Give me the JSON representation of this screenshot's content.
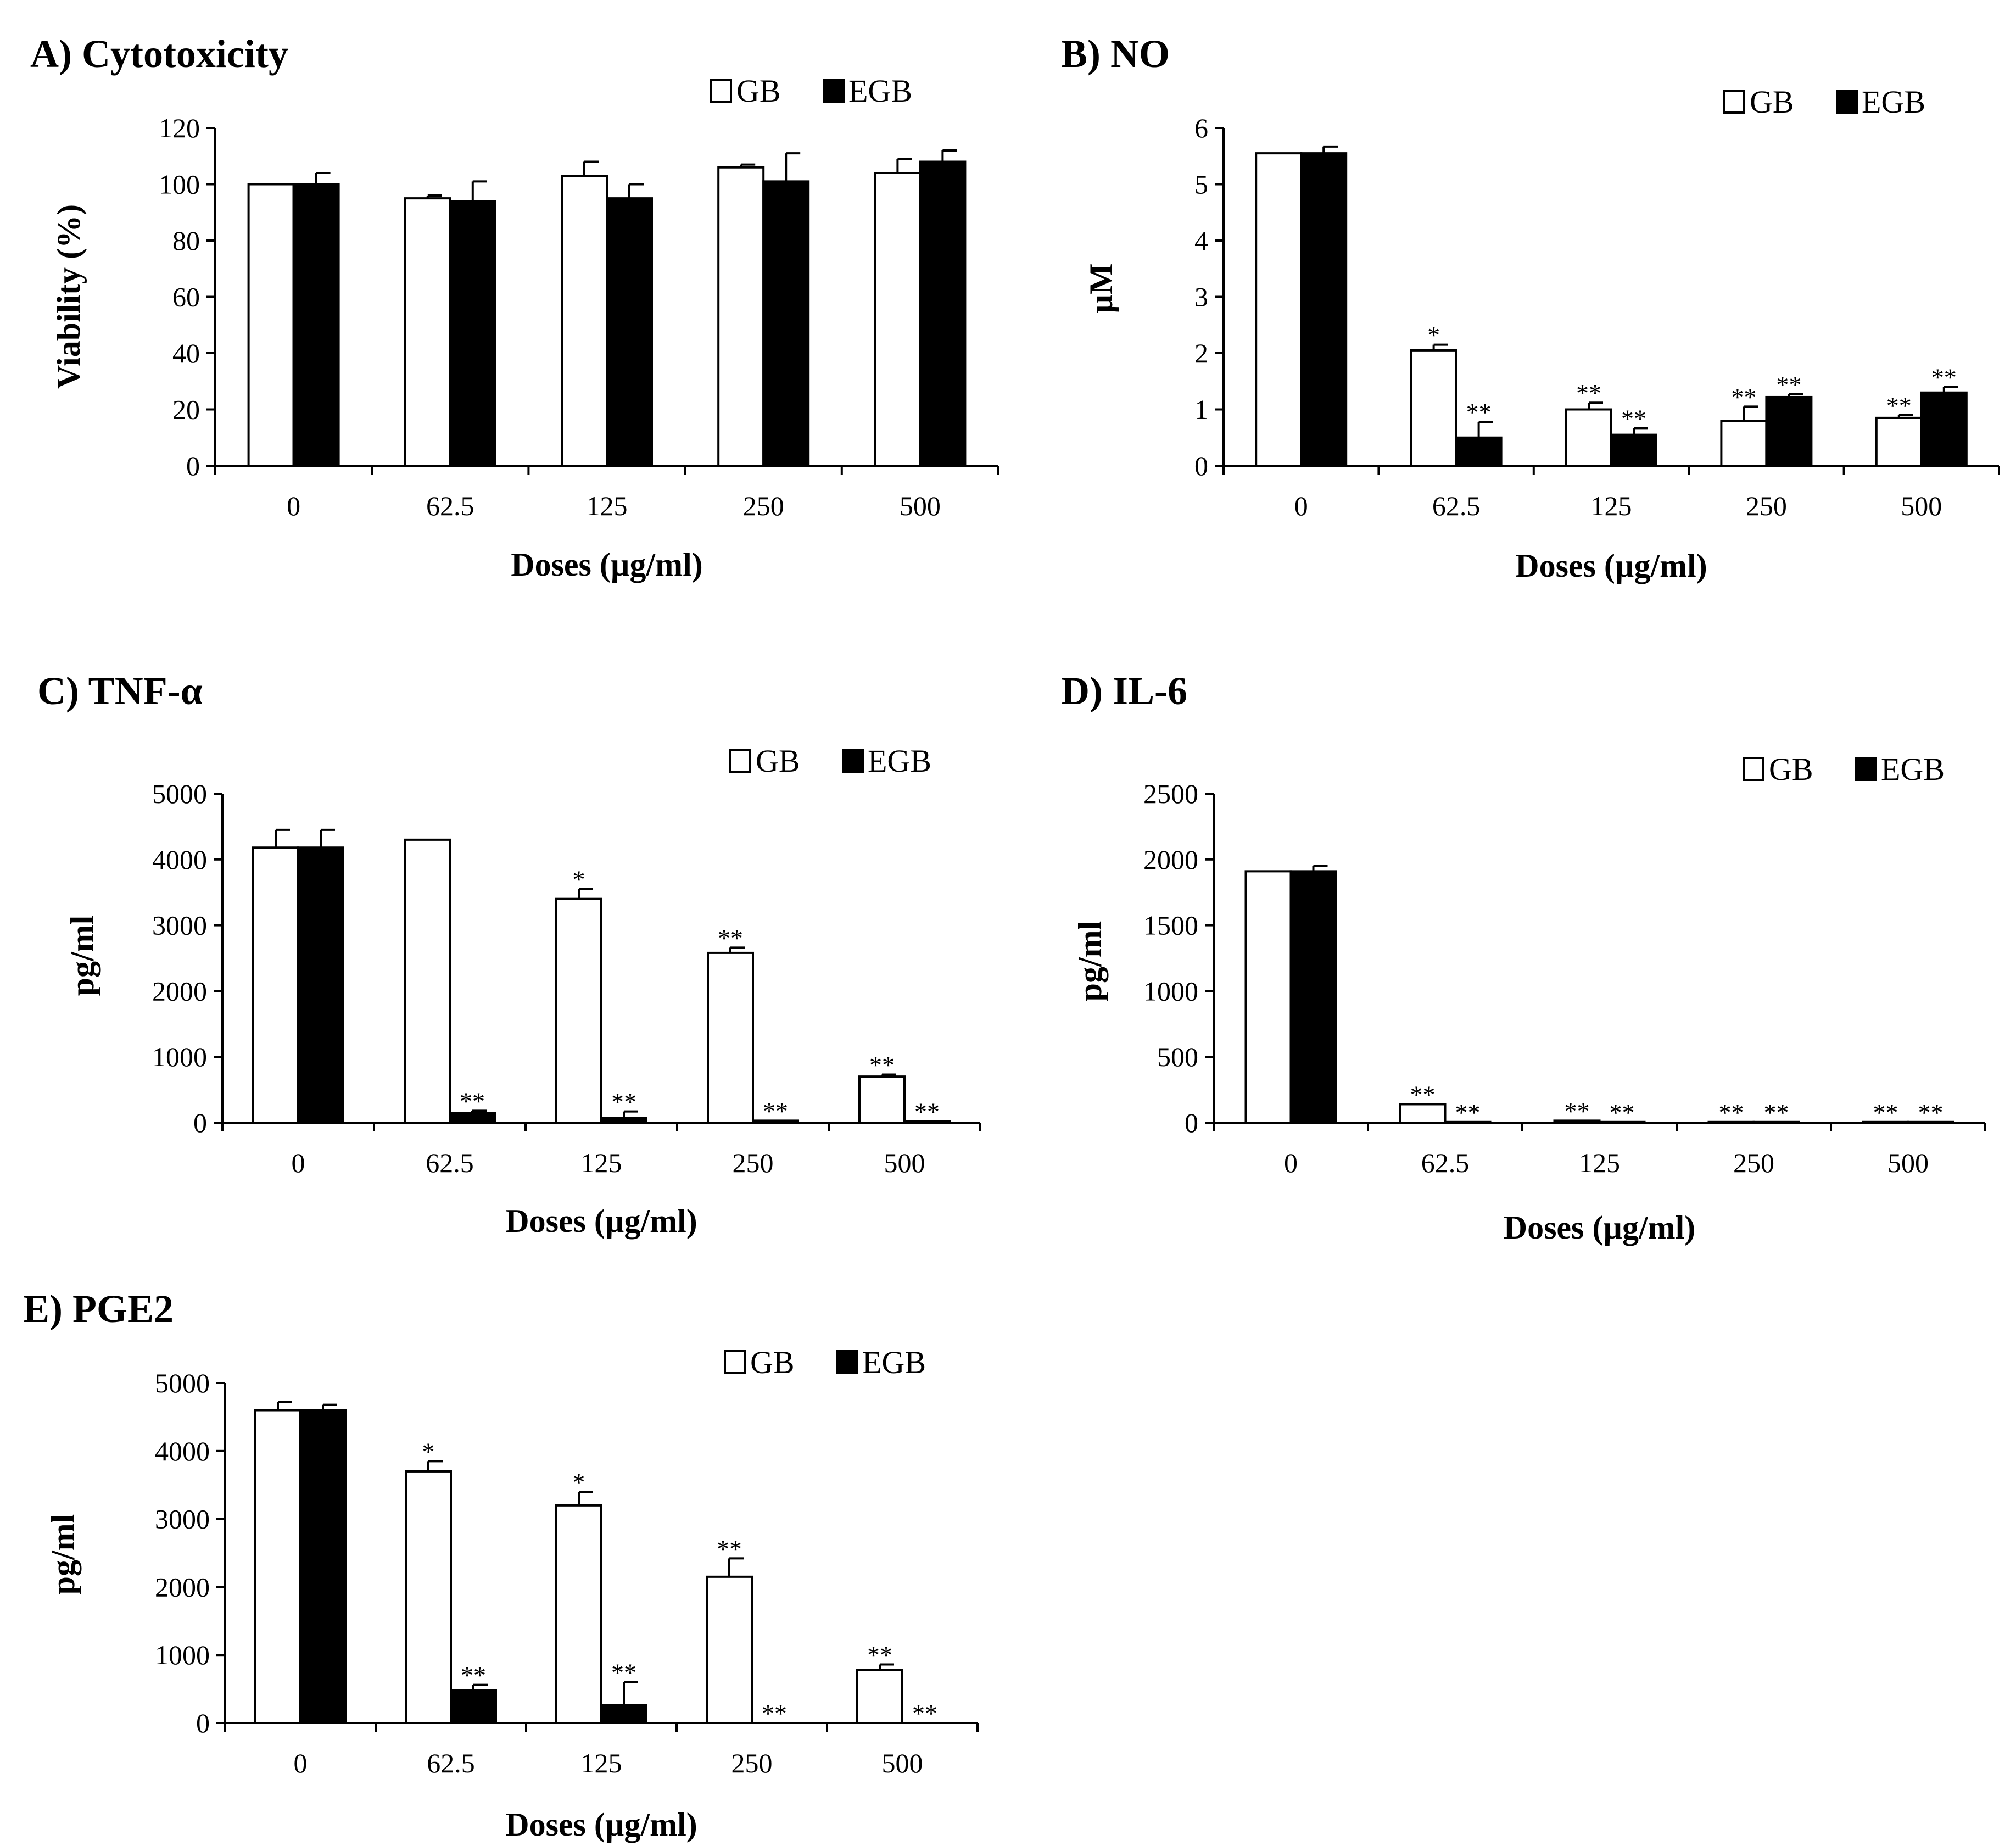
{
  "legend_labels": {
    "open": "GB",
    "filled": "EGB"
  },
  "colors": {
    "gb_fill": "#ffffff",
    "egb_fill": "#000000",
    "axis": "#000000"
  },
  "chart_data": [
    {
      "panel": "A",
      "title": "A) Cytotoxicity",
      "type": "bar",
      "categories": [
        "0",
        "62.5",
        "125",
        "250",
        "500"
      ],
      "xlabel": "Doses (µg/ml)",
      "ylabel": "Viability (%)",
      "ylim": [
        0,
        120
      ],
      "yticks": [
        0,
        20,
        40,
        60,
        80,
        100,
        120
      ],
      "series": [
        {
          "name": "GB",
          "values": [
            100,
            95,
            103,
            106,
            104
          ],
          "errors": [
            0,
            1,
            5,
            1,
            5
          ],
          "sig": [
            "",
            "",
            "",
            "",
            ""
          ]
        },
        {
          "name": "EGB",
          "values": [
            100,
            94,
            95,
            101,
            108
          ],
          "errors": [
            4,
            7,
            5,
            10,
            4
          ],
          "sig": [
            "",
            "",
            "",
            "",
            ""
          ]
        }
      ]
    },
    {
      "panel": "B",
      "title": "B) NO",
      "type": "bar",
      "categories": [
        "0",
        "62.5",
        "125",
        "250",
        "500"
      ],
      "xlabel": "Doses (µg/ml)",
      "ylabel": "µM",
      "ylim": [
        0,
        6
      ],
      "yticks": [
        0,
        1,
        2,
        3,
        4,
        5,
        6
      ],
      "series": [
        {
          "name": "GB",
          "values": [
            5.55,
            2.05,
            1.0,
            0.8,
            0.85
          ],
          "errors": [
            0,
            0.1,
            0.12,
            0.25,
            0.05
          ],
          "sig": [
            "",
            "*",
            "**",
            "**",
            "**"
          ]
        },
        {
          "name": "EGB",
          "values": [
            5.55,
            0.5,
            0.55,
            1.22,
            1.3
          ],
          "errors": [
            0.12,
            0.28,
            0.12,
            0.05,
            0.1
          ],
          "sig": [
            "",
            "**",
            "**",
            "**",
            "**"
          ]
        }
      ]
    },
    {
      "panel": "C",
      "title": "C) TNF-α",
      "type": "bar",
      "categories": [
        "0",
        "62.5",
        "125",
        "250",
        "500"
      ],
      "xlabel": "Doses (µg/ml)",
      "ylabel": "pg/ml",
      "ylim": [
        0,
        5000
      ],
      "yticks": [
        0,
        1000,
        2000,
        3000,
        4000,
        5000
      ],
      "series": [
        {
          "name": "GB",
          "values": [
            4180,
            4300,
            3400,
            2580,
            700
          ],
          "errors": [
            270,
            0,
            150,
            80,
            30
          ],
          "sig": [
            "",
            "",
            "*",
            "**",
            "**"
          ]
        },
        {
          "name": "EGB",
          "values": [
            4180,
            150,
            70,
            30,
            20
          ],
          "errors": [
            270,
            30,
            100,
            0,
            0
          ],
          "sig": [
            "",
            "**",
            "**",
            "**",
            "**"
          ]
        }
      ]
    },
    {
      "panel": "D",
      "title": "D) IL-6",
      "type": "bar",
      "categories": [
        "0",
        "62.5",
        "125",
        "250",
        "500"
      ],
      "xlabel": "Doses (µg/ml)",
      "ylabel": "pg/ml",
      "ylim": [
        0,
        2500
      ],
      "yticks": [
        0,
        500,
        1000,
        1500,
        2000,
        2500
      ],
      "series": [
        {
          "name": "GB",
          "values": [
            1910,
            140,
            15,
            5,
            5
          ],
          "errors": [
            0,
            0,
            0,
            0,
            0
          ],
          "sig": [
            "",
            "**",
            "**",
            "**",
            "**"
          ]
        },
        {
          "name": "EGB",
          "values": [
            1910,
            5,
            5,
            5,
            5
          ],
          "errors": [
            40,
            0,
            0,
            0,
            0
          ],
          "sig": [
            "",
            "**",
            "**",
            "**",
            "**"
          ]
        }
      ]
    },
    {
      "panel": "E",
      "title": "E) PGE2",
      "type": "bar",
      "categories": [
        "0",
        "62.5",
        "125",
        "250",
        "500"
      ],
      "xlabel": "Doses (µg/ml)",
      "ylabel": "pg/ml",
      "ylim": [
        0,
        5000
      ],
      "yticks": [
        0,
        1000,
        2000,
        3000,
        4000,
        5000
      ],
      "series": [
        {
          "name": "GB",
          "values": [
            4600,
            3700,
            3200,
            2150,
            780
          ],
          "errors": [
            120,
            150,
            200,
            270,
            80
          ],
          "sig": [
            "",
            "*",
            "*",
            "**",
            "**"
          ]
        },
        {
          "name": "EGB",
          "values": [
            4600,
            480,
            260,
            0,
            0
          ],
          "errors": [
            80,
            80,
            340,
            0,
            0
          ],
          "sig": [
            "",
            "**",
            "**",
            "**",
            "**"
          ]
        }
      ]
    }
  ]
}
